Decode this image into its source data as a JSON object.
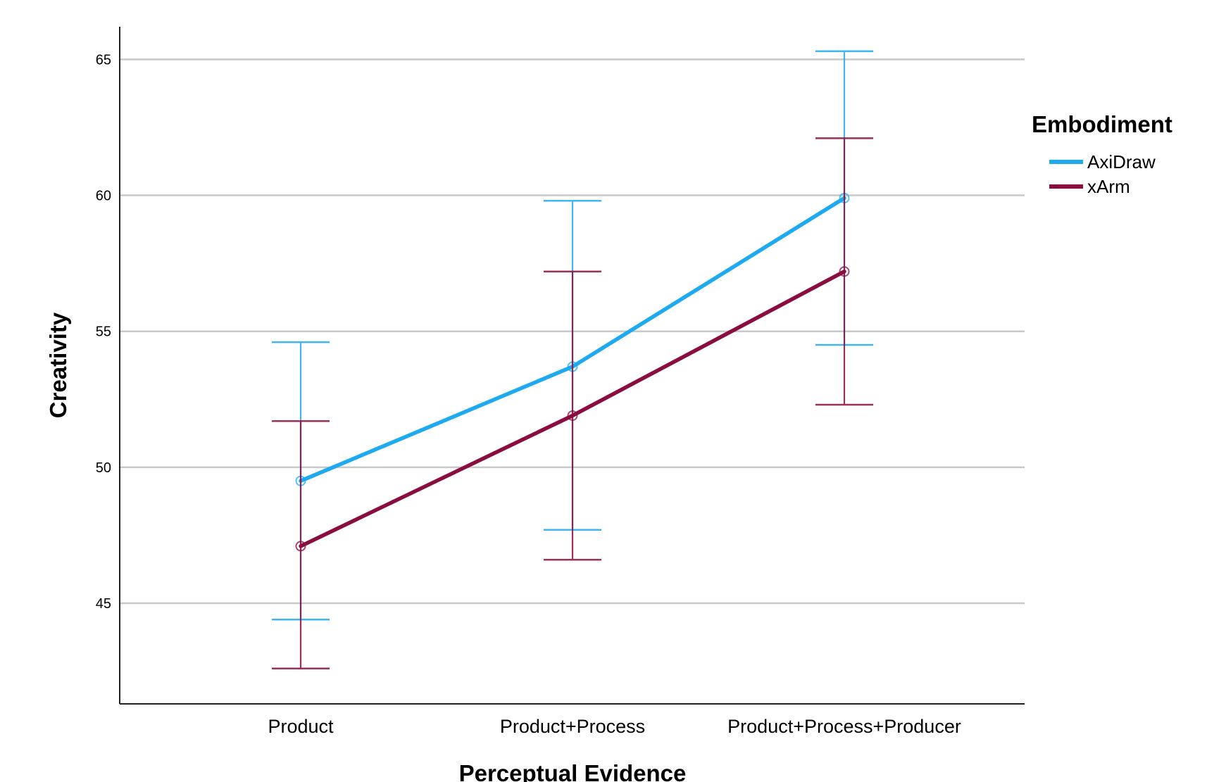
{
  "chart_data": {
    "type": "line",
    "xlabel": "Perceptual Evidence",
    "ylabel": "Creativity",
    "categories": [
      "Product",
      "Product+Process",
      "Product+Process+Producer"
    ],
    "ylim": [
      41.3,
      66.2
    ],
    "yticks": [
      45,
      50,
      55,
      60,
      65
    ],
    "grid": true,
    "legend": {
      "title": "Embodiment",
      "position": "right"
    },
    "series": [
      {
        "name": "AxiDraw",
        "color": "#1eaaf1",
        "values": [
          49.5,
          53.7,
          59.9
        ],
        "err_low": [
          44.4,
          47.7,
          54.5
        ],
        "err_high": [
          54.6,
          59.8,
          65.3
        ]
      },
      {
        "name": "xArm",
        "color": "#8b0d3f",
        "values": [
          47.1,
          51.9,
          57.2
        ],
        "err_low": [
          42.6,
          46.6,
          52.3
        ],
        "err_high": [
          51.7,
          57.2,
          62.1
        ]
      }
    ]
  }
}
